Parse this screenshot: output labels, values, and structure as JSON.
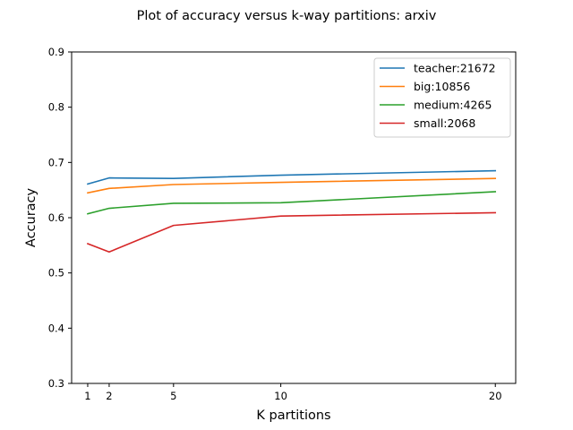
{
  "chart_data": {
    "type": "line",
    "title": "Plot of accuracy versus k-way partitions: arxiv",
    "xlabel": "K partitions",
    "ylabel": "Accuracy",
    "x": [
      1,
      2,
      5,
      10,
      20
    ],
    "xticks": [
      1,
      2,
      5,
      10,
      20
    ],
    "xlim": [
      0.25,
      20.95
    ],
    "yticks": [
      0.3,
      0.4,
      0.5,
      0.6,
      0.7,
      0.8,
      0.9
    ],
    "ytick_labels": [
      "0.3",
      "0.4",
      "0.5",
      "0.6",
      "0.7",
      "0.8",
      "0.9"
    ],
    "ylim": [
      0.3,
      0.9
    ],
    "grid": false,
    "legend_position": "top-right",
    "series": [
      {
        "name": "teacher:21672",
        "color": "#1f77b4",
        "values": [
          0.661,
          0.672,
          0.671,
          0.677,
          0.685
        ]
      },
      {
        "name": "big:10856",
        "color": "#ff7f0e",
        "values": [
          0.645,
          0.653,
          0.66,
          0.664,
          0.671
        ]
      },
      {
        "name": "medium:4265",
        "color": "#2ca02c",
        "values": [
          0.607,
          0.617,
          0.626,
          0.627,
          0.647
        ]
      },
      {
        "name": "small:2068",
        "color": "#d62728",
        "values": [
          0.553,
          0.538,
          0.586,
          0.603,
          0.609
        ]
      }
    ]
  }
}
